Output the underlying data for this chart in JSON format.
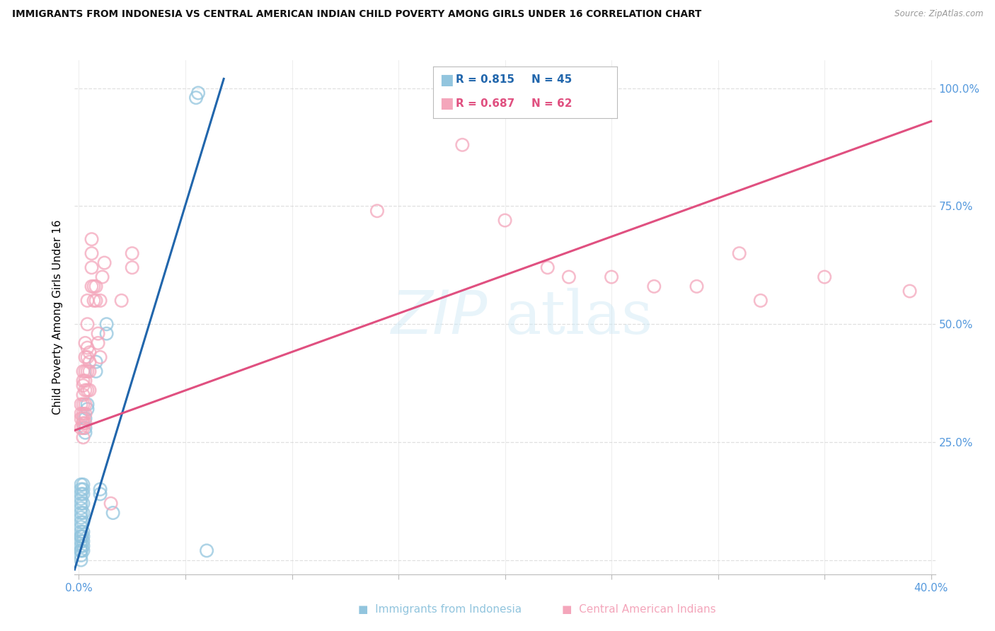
{
  "title": "IMMIGRANTS FROM INDONESIA VS CENTRAL AMERICAN INDIAN CHILD POVERTY AMONG GIRLS UNDER 16 CORRELATION CHART",
  "source": "Source: ZipAtlas.com",
  "ylabel": "Child Poverty Among Girls Under 16",
  "watermark": "ZIPatlas",
  "legend_r1": "R = 0.815",
  "legend_n1": "N = 45",
  "legend_r2": "R = 0.687",
  "legend_n2": "N = 62",
  "blue_color": "#92c5de",
  "pink_color": "#f4a6bb",
  "blue_line_color": "#2166ac",
  "pink_line_color": "#e05080",
  "blue_scatter": [
    [
      0.001,
      0.0
    ],
    [
      0.001,
      0.01
    ],
    [
      0.001,
      0.02
    ],
    [
      0.001,
      0.02
    ],
    [
      0.001,
      0.03
    ],
    [
      0.001,
      0.04
    ],
    [
      0.001,
      0.05
    ],
    [
      0.001,
      0.05
    ],
    [
      0.001,
      0.06
    ],
    [
      0.001,
      0.07
    ],
    [
      0.001,
      0.08
    ],
    [
      0.001,
      0.09
    ],
    [
      0.001,
      0.1
    ],
    [
      0.001,
      0.11
    ],
    [
      0.001,
      0.12
    ],
    [
      0.001,
      0.13
    ],
    [
      0.001,
      0.14
    ],
    [
      0.001,
      0.15
    ],
    [
      0.001,
      0.16
    ],
    [
      0.002,
      0.02
    ],
    [
      0.002,
      0.03
    ],
    [
      0.002,
      0.04
    ],
    [
      0.002,
      0.05
    ],
    [
      0.002,
      0.06
    ],
    [
      0.002,
      0.08
    ],
    [
      0.002,
      0.1
    ],
    [
      0.002,
      0.12
    ],
    [
      0.002,
      0.14
    ],
    [
      0.002,
      0.15
    ],
    [
      0.002,
      0.16
    ],
    [
      0.003,
      0.27
    ],
    [
      0.003,
      0.28
    ],
    [
      0.003,
      0.3
    ],
    [
      0.004,
      0.32
    ],
    [
      0.004,
      0.33
    ],
    [
      0.008,
      0.4
    ],
    [
      0.008,
      0.42
    ],
    [
      0.01,
      0.14
    ],
    [
      0.01,
      0.15
    ],
    [
      0.013,
      0.48
    ],
    [
      0.013,
      0.5
    ],
    [
      0.016,
      0.1
    ],
    [
      0.055,
      0.98
    ],
    [
      0.056,
      0.99
    ],
    [
      0.06,
      0.02
    ]
  ],
  "pink_scatter": [
    [
      0.001,
      0.28
    ],
    [
      0.001,
      0.3
    ],
    [
      0.001,
      0.31
    ],
    [
      0.001,
      0.33
    ],
    [
      0.002,
      0.26
    ],
    [
      0.002,
      0.28
    ],
    [
      0.002,
      0.29
    ],
    [
      0.002,
      0.3
    ],
    [
      0.002,
      0.31
    ],
    [
      0.002,
      0.33
    ],
    [
      0.002,
      0.35
    ],
    [
      0.002,
      0.37
    ],
    [
      0.002,
      0.38
    ],
    [
      0.002,
      0.4
    ],
    [
      0.003,
      0.29
    ],
    [
      0.003,
      0.31
    ],
    [
      0.003,
      0.33
    ],
    [
      0.003,
      0.36
    ],
    [
      0.003,
      0.38
    ],
    [
      0.003,
      0.4
    ],
    [
      0.003,
      0.43
    ],
    [
      0.003,
      0.46
    ],
    [
      0.004,
      0.36
    ],
    [
      0.004,
      0.4
    ],
    [
      0.004,
      0.43
    ],
    [
      0.004,
      0.45
    ],
    [
      0.004,
      0.5
    ],
    [
      0.004,
      0.55
    ],
    [
      0.005,
      0.36
    ],
    [
      0.005,
      0.4
    ],
    [
      0.005,
      0.42
    ],
    [
      0.005,
      0.44
    ],
    [
      0.006,
      0.58
    ],
    [
      0.006,
      0.62
    ],
    [
      0.006,
      0.65
    ],
    [
      0.006,
      0.68
    ],
    [
      0.007,
      0.55
    ],
    [
      0.007,
      0.58
    ],
    [
      0.008,
      0.55
    ],
    [
      0.008,
      0.58
    ],
    [
      0.009,
      0.46
    ],
    [
      0.009,
      0.48
    ],
    [
      0.01,
      0.43
    ],
    [
      0.01,
      0.55
    ],
    [
      0.011,
      0.6
    ],
    [
      0.012,
      0.63
    ],
    [
      0.015,
      0.12
    ],
    [
      0.02,
      0.55
    ],
    [
      0.025,
      0.62
    ],
    [
      0.025,
      0.65
    ],
    [
      0.14,
      0.74
    ],
    [
      0.18,
      0.88
    ],
    [
      0.2,
      0.72
    ],
    [
      0.22,
      0.62
    ],
    [
      0.23,
      0.6
    ],
    [
      0.25,
      0.6
    ],
    [
      0.27,
      0.58
    ],
    [
      0.29,
      0.58
    ],
    [
      0.31,
      0.65
    ],
    [
      0.32,
      0.55
    ],
    [
      0.35,
      0.6
    ],
    [
      0.39,
      0.57
    ]
  ],
  "blue_line_x": [
    -0.002,
    0.068
  ],
  "blue_line_y": [
    -0.02,
    1.02
  ],
  "pink_line_x": [
    -0.005,
    0.4
  ],
  "pink_line_y": [
    0.27,
    0.93
  ],
  "xlim": [
    -0.002,
    0.402
  ],
  "ylim": [
    -0.03,
    1.06
  ],
  "xticks": [
    0.0,
    0.05,
    0.1,
    0.15,
    0.2,
    0.25,
    0.3,
    0.35,
    0.4
  ],
  "xtick_labels": [
    "0.0%",
    "",
    "",
    "",
    "",
    "",
    "",
    "",
    "40.0%"
  ],
  "yticks": [
    0.0,
    0.25,
    0.5,
    0.75,
    1.0
  ],
  "ytick_labels_right": [
    "",
    "25.0%",
    "50.0%",
    "75.0%",
    "100.0%"
  ],
  "grid_color": "#e0e0e0",
  "tick_color": "#5599dd",
  "background_color": "#ffffff"
}
